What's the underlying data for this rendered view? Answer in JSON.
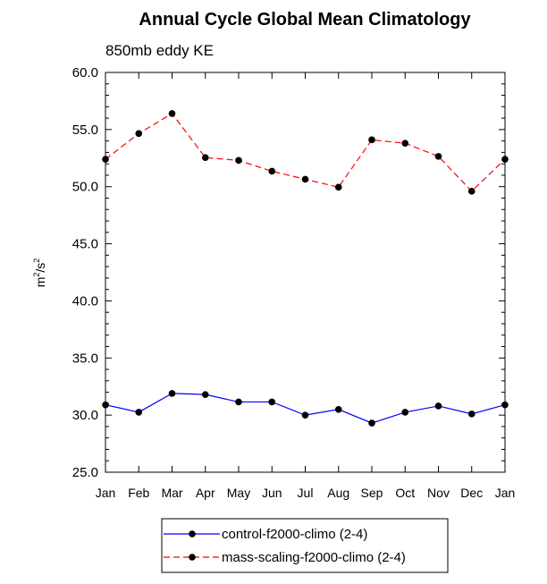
{
  "chart_data": {
    "type": "line",
    "title": "Annual Cycle Global Mean Climatology",
    "subtitle": "850mb eddy KE",
    "ylabel": "m²/s²",
    "ylabel_base": "m",
    "ylabel_exp1": "2",
    "ylabel_mid": "/s",
    "ylabel_exp2": "2",
    "xlabel": "",
    "ylim": [
      25.0,
      60.0
    ],
    "yticks": [
      "25.0",
      "30.0",
      "35.0",
      "40.0",
      "45.0",
      "50.0",
      "55.0",
      "60.0"
    ],
    "yminor_step": 1,
    "categories": [
      "Jan",
      "Feb",
      "Mar",
      "Apr",
      "May",
      "Jun",
      "Jul",
      "Aug",
      "Sep",
      "Oct",
      "Nov",
      "Dec",
      "Jan"
    ],
    "series": [
      {
        "name": "control-f2000-climo (2-4)",
        "color": "#0000ff",
        "dash": "solid",
        "values": [
          30.9,
          30.25,
          31.9,
          31.8,
          31.15,
          31.15,
          30.0,
          30.5,
          29.3,
          30.25,
          30.8,
          30.1,
          30.9
        ]
      },
      {
        "name": "mass-scaling-f2000-climo (2-4)",
        "color": "#ff0000",
        "dash": "dashed",
        "values": [
          52.4,
          54.65,
          56.4,
          52.55,
          52.3,
          51.35,
          50.65,
          49.95,
          54.1,
          53.8,
          52.65,
          49.6,
          52.4
        ]
      }
    ],
    "grid": false,
    "legend_position": "bottom-center"
  }
}
